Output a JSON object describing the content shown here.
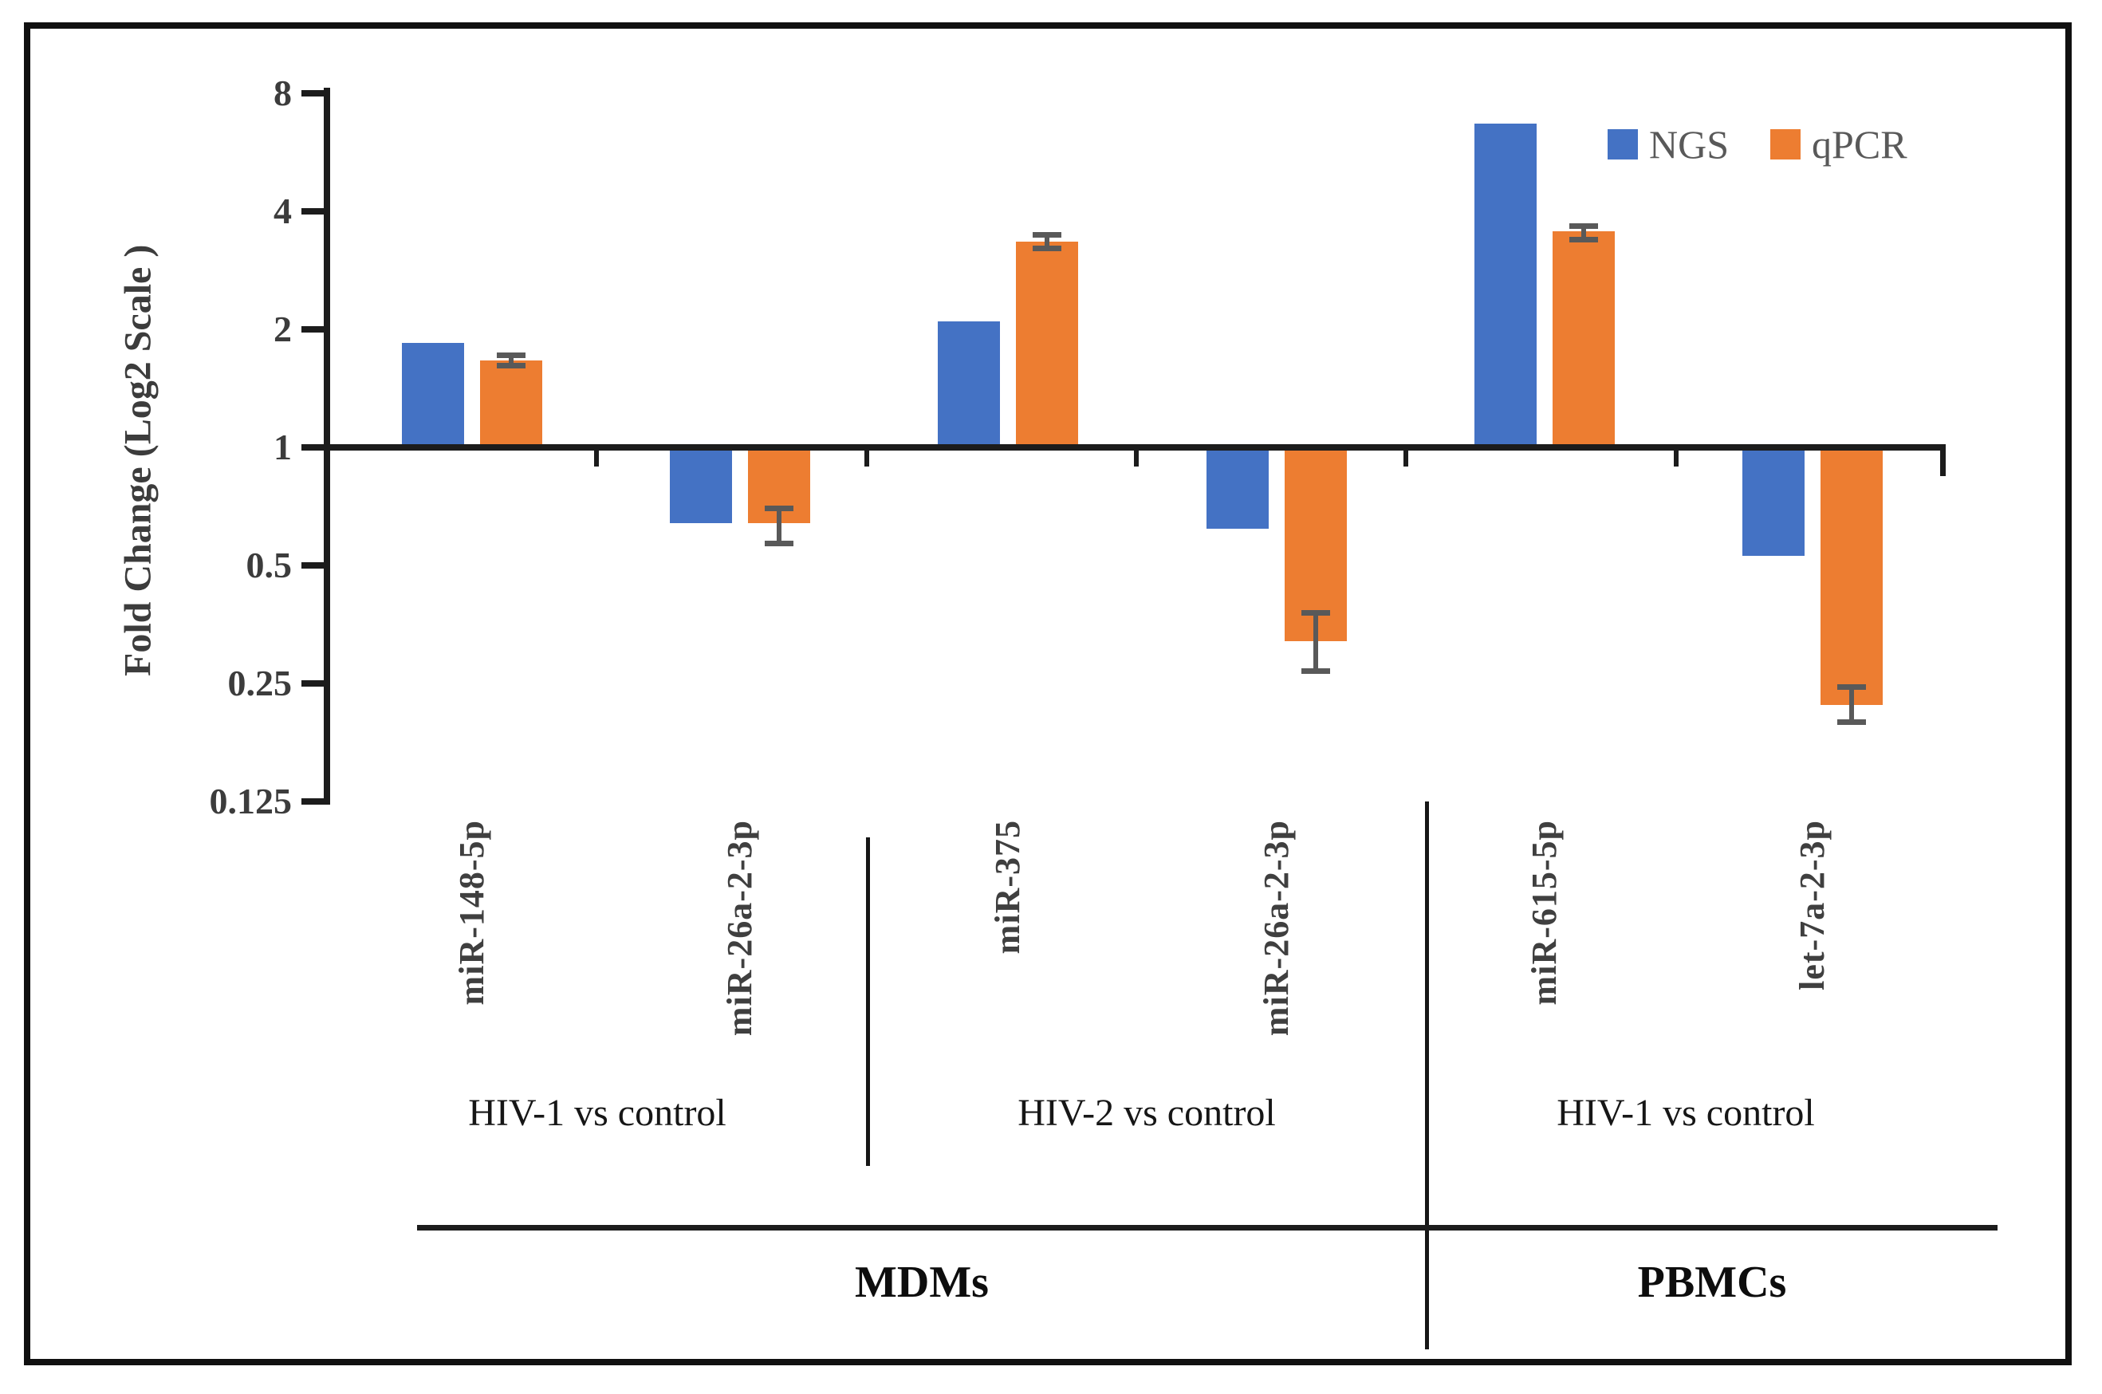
{
  "chart_data": {
    "type": "bar",
    "y_scale": "log2",
    "ylabel": "Fold Change (Log2 Scale )",
    "ylim": [
      0.125,
      8
    ],
    "ytick_labels": [
      "8",
      "4",
      "2",
      "1",
      "0.5",
      "0.25",
      "0.125"
    ],
    "ytick_values": [
      8,
      4,
      2,
      1,
      0.5,
      0.25,
      0.125
    ],
    "grid": false,
    "legend_position": "top-right",
    "categories": [
      "miR-148-5p",
      "miR-26a-2-3p",
      "miR-375",
      "miR-26a-2-3p",
      "miR-615-5p",
      "let-7a-2-3p"
    ],
    "series": [
      {
        "name": "NGS",
        "color": "#4472C4",
        "values": [
          1.85,
          0.64,
          2.1,
          0.62,
          6.7,
          0.53
        ]
      },
      {
        "name": "qPCR",
        "color": "#ED7D31",
        "values": [
          1.67,
          0.64,
          3.35,
          0.32,
          3.55,
          0.22
        ],
        "error_bars": [
          {
            "low": 1.62,
            "high": 1.72
          },
          {
            "low": 0.57,
            "high": 0.7
          },
          {
            "low": 3.22,
            "high": 3.5
          },
          {
            "low": 0.27,
            "high": 0.38
          },
          {
            "low": 3.4,
            "high": 3.68
          },
          {
            "low": 0.2,
            "high": 0.245
          }
        ]
      }
    ],
    "comparison_groups": [
      {
        "label": "HIV-1 vs control",
        "category_span": [
          0,
          1
        ]
      },
      {
        "label": "HIV-2 vs control",
        "category_span": [
          2,
          3
        ]
      },
      {
        "label": "HIV-1 vs control",
        "category_span": [
          4,
          5
        ]
      }
    ],
    "cell_groups": [
      {
        "label": "MDMs",
        "category_span": [
          0,
          3
        ]
      },
      {
        "label": "PBMCs",
        "category_span": [
          4,
          5
        ]
      }
    ],
    "error_bar_color": "#595959"
  },
  "legend": {
    "items": [
      {
        "label": "NGS",
        "color": "#4472C4"
      },
      {
        "label": "qPCR",
        "color": "#ED7D31"
      }
    ]
  }
}
